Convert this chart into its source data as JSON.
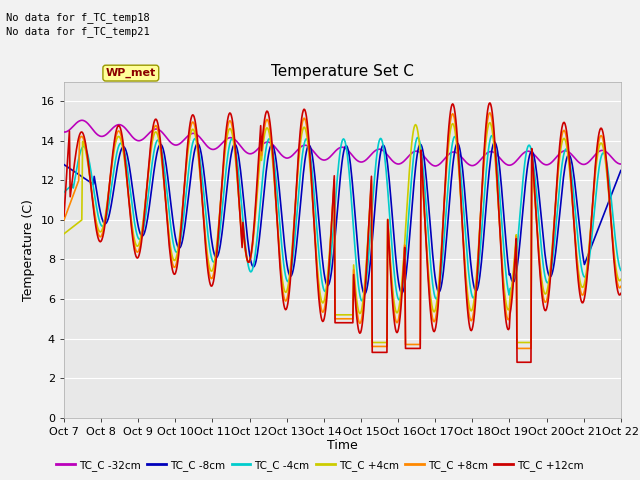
{
  "title": "Temperature Set C",
  "xlabel": "Time",
  "ylabel": "Temperature (C)",
  "ylim": [
    0,
    17
  ],
  "yticks": [
    0,
    2,
    4,
    6,
    8,
    10,
    12,
    14,
    16
  ],
  "x_labels": [
    "Oct 7",
    "Oct 8",
    "Oct 9",
    "Oct 10",
    "Oct 11",
    "Oct 12",
    "Oct 13",
    "Oct 14",
    "Oct 15",
    "Oct 16",
    "Oct 17",
    "Oct 18",
    "Oct 19",
    "Oct 20",
    "Oct 21",
    "Oct 22"
  ],
  "note1": "No data for f_TC_temp18",
  "note2": "No data for f_TC_temp21",
  "wp_met_label": "WP_met",
  "legend_entries": [
    "TC_C -32cm",
    "TC_C -8cm",
    "TC_C -4cm",
    "TC_C +4cm",
    "TC_C +8cm",
    "TC_C +12cm"
  ],
  "line_colors": [
    "#bb00bb",
    "#0000bb",
    "#00cccc",
    "#cccc00",
    "#ff8800",
    "#cc0000"
  ],
  "line_widths": [
    1.2,
    1.2,
    1.2,
    1.2,
    1.2,
    1.2
  ],
  "bg_color": "#e8e8e8",
  "grid_color": "#ffffff",
  "fig_bg": "#f2f2f2",
  "num_points": 720
}
